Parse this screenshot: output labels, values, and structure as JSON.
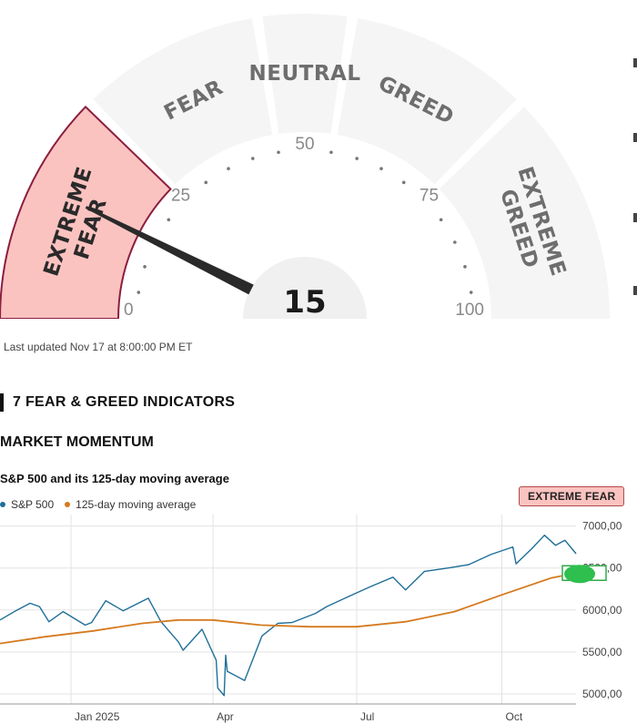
{
  "gauge": {
    "segments": [
      {
        "label_lines": [
          "EXTREME",
          "FEAR"
        ],
        "active": true
      },
      {
        "label_lines": [
          "FEAR"
        ],
        "active": false
      },
      {
        "label_lines": [
          "NEUTRAL"
        ],
        "active": false
      },
      {
        "label_lines": [
          "GREED"
        ],
        "active": false
      },
      {
        "label_lines": [
          "EXTREME",
          "GREED"
        ],
        "active": false
      }
    ],
    "scale_labels": [
      "0",
      "25",
      "50",
      "75",
      "100"
    ],
    "score": "15",
    "active_color": "#fbc3c0",
    "active_border": "#8b1e3f",
    "segment_color": "#f5f5f5"
  },
  "last_updated": "Last updated Nov 17 at 8:00:00 PM ET",
  "section_title": "7 FEAR & GREED INDICATORS",
  "indicator": {
    "title": "MARKET MOMENTUM",
    "chart_title": "S&P 500 and its 125-day moving average",
    "rating": "EXTREME FEAR",
    "rating_color": "#fbc3c0"
  },
  "legend": [
    {
      "label": "S&P 500",
      "color": "#1f6f99"
    },
    {
      "label": "125-day moving average",
      "color": "#d57a1f"
    }
  ],
  "chart_data": {
    "type": "line",
    "title": "S&P 500 and its 125-day moving average",
    "y_tick_labels": [
      "7000,00",
      "6500,00",
      "6000,00",
      "5500,00",
      "5000,00"
    ],
    "y_ticks": [
      7000,
      6500,
      6000,
      5500,
      5000
    ],
    "ylim": [
      4880,
      7050
    ],
    "x_tick_labels": [
      "Jan 2025",
      "Apr",
      "Jul",
      "Oct"
    ],
    "x_ticks": [
      "2025-01-01",
      "2025-04-01",
      "2025-07-01",
      "2025-10-01"
    ],
    "xlim": [
      "2024-11-17",
      "2025-11-17"
    ],
    "grid": true,
    "legend_position": "top-left",
    "series": [
      {
        "name": "S&P 500",
        "color": "#1f6f99",
        "points": [
          [
            "2024-11-17",
            5880
          ],
          [
            "2024-11-27",
            5990
          ],
          [
            "2024-12-06",
            6080
          ],
          [
            "2024-12-12",
            6040
          ],
          [
            "2024-12-18",
            5860
          ],
          [
            "2024-12-27",
            5980
          ],
          [
            "2025-01-10",
            5820
          ],
          [
            "2025-01-14",
            5850
          ],
          [
            "2025-01-23",
            6110
          ],
          [
            "2025-02-03",
            5990
          ],
          [
            "2025-02-19",
            6140
          ],
          [
            "2025-02-27",
            5860
          ],
          [
            "2025-03-10",
            5620
          ],
          [
            "2025-03-13",
            5520
          ],
          [
            "2025-03-25",
            5770
          ],
          [
            "2025-04-03",
            5400
          ],
          [
            "2025-04-04",
            5070
          ],
          [
            "2025-04-08",
            4980
          ],
          [
            "2025-04-09",
            5460
          ],
          [
            "2025-04-10",
            5270
          ],
          [
            "2025-04-21",
            5160
          ],
          [
            "2025-05-02",
            5690
          ],
          [
            "2025-05-12",
            5840
          ],
          [
            "2025-05-21",
            5850
          ],
          [
            "2025-06-05",
            5960
          ],
          [
            "2025-06-12",
            6040
          ],
          [
            "2025-06-27",
            6170
          ],
          [
            "2025-07-10",
            6280
          ],
          [
            "2025-07-24",
            6390
          ],
          [
            "2025-08-01",
            6240
          ],
          [
            "2025-08-13",
            6460
          ],
          [
            "2025-08-28",
            6500
          ],
          [
            "2025-09-10",
            6540
          ],
          [
            "2025-09-24",
            6660
          ],
          [
            "2025-10-08",
            6750
          ],
          [
            "2025-10-10",
            6550
          ],
          [
            "2025-10-20",
            6730
          ],
          [
            "2025-10-28",
            6890
          ],
          [
            "2025-11-04",
            6770
          ],
          [
            "2025-11-10",
            6830
          ],
          [
            "2025-11-17",
            6670
          ]
        ]
      },
      {
        "name": "125-day moving average",
        "color": "#d57a1f",
        "points": [
          [
            "2024-11-17",
            5600
          ],
          [
            "2024-12-15",
            5680
          ],
          [
            "2025-01-15",
            5750
          ],
          [
            "2025-02-15",
            5840
          ],
          [
            "2025-03-10",
            5880
          ],
          [
            "2025-04-01",
            5880
          ],
          [
            "2025-05-01",
            5820
          ],
          [
            "2025-06-01",
            5800
          ],
          [
            "2025-07-01",
            5800
          ],
          [
            "2025-08-01",
            5860
          ],
          [
            "2025-09-01",
            5980
          ],
          [
            "2025-10-01",
            6180
          ],
          [
            "2025-11-01",
            6380
          ],
          [
            "2025-11-17",
            6440
          ]
        ]
      }
    ]
  }
}
